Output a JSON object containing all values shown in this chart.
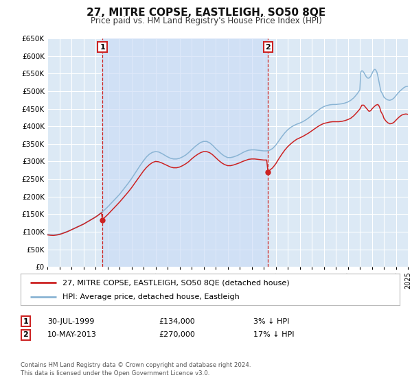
{
  "title": "27, MITRE COPSE, EASTLEIGH, SO50 8QE",
  "subtitle": "Price paid vs. HM Land Registry's House Price Index (HPI)",
  "title_fontsize": 11,
  "subtitle_fontsize": 8.5,
  "bg_color": "#ffffff",
  "plot_bg_color": "#dce9f5",
  "grid_color": "#ffffff",
  "hpi_color": "#8ab4d4",
  "price_color": "#cc2222",
  "marker_color": "#cc2222",
  "vline_color": "#cc2222",
  "ylim": [
    0,
    650000
  ],
  "xlim": [
    1995,
    2025
  ],
  "sale1_x": 1999.58,
  "sale1_y": 134000,
  "sale2_x": 2013.36,
  "sale2_y": 270000,
  "legend_entry1": "27, MITRE COPSE, EASTLEIGH, SO50 8QE (detached house)",
  "legend_entry2": "HPI: Average price, detached house, Eastleigh",
  "note1_label": "1",
  "note1_date": "30-JUL-1999",
  "note1_price": "£134,000",
  "note1_pct": "3% ↓ HPI",
  "note2_label": "2",
  "note2_date": "10-MAY-2013",
  "note2_price": "£270,000",
  "note2_pct": "17% ↓ HPI",
  "footer1": "Contains HM Land Registry data © Crown copyright and database right 2024.",
  "footer2": "This data is licensed under the Open Government Licence v3.0.",
  "hpi_data": [
    [
      1995.0,
      93000
    ],
    [
      1995.25,
      91500
    ],
    [
      1995.5,
      91000
    ],
    [
      1995.75,
      92000
    ],
    [
      1996.0,
      93500
    ],
    [
      1996.25,
      96000
    ],
    [
      1996.5,
      99000
    ],
    [
      1996.75,
      102000
    ],
    [
      1997.0,
      106000
    ],
    [
      1997.25,
      110000
    ],
    [
      1997.5,
      114000
    ],
    [
      1997.75,
      118000
    ],
    [
      1998.0,
      122000
    ],
    [
      1998.25,
      127000
    ],
    [
      1998.5,
      132000
    ],
    [
      1998.75,
      137000
    ],
    [
      1999.0,
      142000
    ],
    [
      1999.25,
      148000
    ],
    [
      1999.5,
      155000
    ],
    [
      1999.75,
      162000
    ],
    [
      2000.0,
      170000
    ],
    [
      2000.25,
      179000
    ],
    [
      2000.5,
      188000
    ],
    [
      2000.75,
      197000
    ],
    [
      2001.0,
      206000
    ],
    [
      2001.25,
      217000
    ],
    [
      2001.5,
      228000
    ],
    [
      2001.75,
      239000
    ],
    [
      2002.0,
      251000
    ],
    [
      2002.25,
      264000
    ],
    [
      2002.5,
      277000
    ],
    [
      2002.75,
      290000
    ],
    [
      2003.0,
      302000
    ],
    [
      2003.25,
      313000
    ],
    [
      2003.5,
      321000
    ],
    [
      2003.75,
      326000
    ],
    [
      2004.0,
      328000
    ],
    [
      2004.25,
      327000
    ],
    [
      2004.5,
      323000
    ],
    [
      2004.75,
      318000
    ],
    [
      2005.0,
      313000
    ],
    [
      2005.25,
      309000
    ],
    [
      2005.5,
      307000
    ],
    [
      2005.75,
      307000
    ],
    [
      2006.0,
      309000
    ],
    [
      2006.25,
      313000
    ],
    [
      2006.5,
      318000
    ],
    [
      2006.75,
      325000
    ],
    [
      2007.0,
      333000
    ],
    [
      2007.25,
      341000
    ],
    [
      2007.5,
      348000
    ],
    [
      2007.75,
      354000
    ],
    [
      2008.0,
      357000
    ],
    [
      2008.25,
      357000
    ],
    [
      2008.5,
      353000
    ],
    [
      2008.75,
      346000
    ],
    [
      2009.0,
      337000
    ],
    [
      2009.25,
      329000
    ],
    [
      2009.5,
      321000
    ],
    [
      2009.75,
      315000
    ],
    [
      2010.0,
      311000
    ],
    [
      2010.25,
      311000
    ],
    [
      2010.5,
      313000
    ],
    [
      2010.75,
      316000
    ],
    [
      2011.0,
      320000
    ],
    [
      2011.25,
      325000
    ],
    [
      2011.5,
      329000
    ],
    [
      2011.75,
      332000
    ],
    [
      2012.0,
      333000
    ],
    [
      2012.25,
      333000
    ],
    [
      2012.5,
      332000
    ],
    [
      2012.75,
      331000
    ],
    [
      2013.0,
      330000
    ],
    [
      2013.25,
      330000
    ],
    [
      2013.5,
      332000
    ],
    [
      2013.75,
      337000
    ],
    [
      2014.0,
      346000
    ],
    [
      2014.25,
      358000
    ],
    [
      2014.5,
      370000
    ],
    [
      2014.75,
      381000
    ],
    [
      2015.0,
      390000
    ],
    [
      2015.25,
      397000
    ],
    [
      2015.5,
      402000
    ],
    [
      2015.75,
      406000
    ],
    [
      2016.0,
      409000
    ],
    [
      2016.25,
      413000
    ],
    [
      2016.5,
      418000
    ],
    [
      2016.75,
      424000
    ],
    [
      2017.0,
      431000
    ],
    [
      2017.25,
      438000
    ],
    [
      2017.5,
      445000
    ],
    [
      2017.75,
      451000
    ],
    [
      2018.0,
      456000
    ],
    [
      2018.25,
      459000
    ],
    [
      2018.5,
      461000
    ],
    [
      2018.75,
      462000
    ],
    [
      2019.0,
      462000
    ],
    [
      2019.25,
      463000
    ],
    [
      2019.5,
      464000
    ],
    [
      2019.75,
      466000
    ],
    [
      2020.0,
      469000
    ],
    [
      2020.25,
      474000
    ],
    [
      2020.5,
      481000
    ],
    [
      2020.75,
      491000
    ],
    [
      2021.0,
      503000
    ],
    [
      2021.08,
      555000
    ],
    [
      2021.17,
      558000
    ],
    [
      2021.25,
      557000
    ],
    [
      2021.33,
      553000
    ],
    [
      2021.42,
      548000
    ],
    [
      2021.5,
      543000
    ],
    [
      2021.58,
      539000
    ],
    [
      2021.67,
      537000
    ],
    [
      2021.75,
      537000
    ],
    [
      2021.83,
      539000
    ],
    [
      2021.92,
      543000
    ],
    [
      2022.0,
      549000
    ],
    [
      2022.08,
      555000
    ],
    [
      2022.17,
      560000
    ],
    [
      2022.25,
      562000
    ],
    [
      2022.33,
      560000
    ],
    [
      2022.42,
      554000
    ],
    [
      2022.5,
      543000
    ],
    [
      2022.58,
      529000
    ],
    [
      2022.67,
      514000
    ],
    [
      2022.75,
      500000
    ],
    [
      2022.92,
      490000
    ],
    [
      2023.0,
      483000
    ],
    [
      2023.17,
      478000
    ],
    [
      2023.33,
      475000
    ],
    [
      2023.5,
      474000
    ],
    [
      2023.67,
      476000
    ],
    [
      2023.83,
      480000
    ],
    [
      2024.0,
      487000
    ],
    [
      2024.17,
      494000
    ],
    [
      2024.33,
      500000
    ],
    [
      2024.5,
      505000
    ],
    [
      2024.67,
      510000
    ],
    [
      2024.83,
      513000
    ],
    [
      2025.0,
      514000
    ]
  ],
  "price_data": [
    [
      1995.0,
      91000
    ],
    [
      1995.25,
      90000
    ],
    [
      1995.5,
      89500
    ],
    [
      1995.75,
      90500
    ],
    [
      1996.0,
      92000
    ],
    [
      1996.25,
      95000
    ],
    [
      1996.5,
      98000
    ],
    [
      1996.75,
      101500
    ],
    [
      1997.0,
      105500
    ],
    [
      1997.25,
      109500
    ],
    [
      1997.5,
      113500
    ],
    [
      1997.75,
      117500
    ],
    [
      1998.0,
      121500
    ],
    [
      1998.25,
      126500
    ],
    [
      1998.5,
      131500
    ],
    [
      1998.75,
      136500
    ],
    [
      1999.0,
      141500
    ],
    [
      1999.25,
      147500
    ],
    [
      1999.5,
      154000
    ],
    [
      1999.58,
      134000
    ],
    [
      1999.75,
      140000
    ],
    [
      2000.0,
      148000
    ],
    [
      2000.25,
      157000
    ],
    [
      2000.5,
      166000
    ],
    [
      2000.75,
      175000
    ],
    [
      2001.0,
      184000
    ],
    [
      2001.25,
      194000
    ],
    [
      2001.5,
      204000
    ],
    [
      2001.75,
      214000
    ],
    [
      2002.0,
      225000
    ],
    [
      2002.25,
      237000
    ],
    [
      2002.5,
      249000
    ],
    [
      2002.75,
      261000
    ],
    [
      2003.0,
      273000
    ],
    [
      2003.25,
      283000
    ],
    [
      2003.5,
      291000
    ],
    [
      2003.75,
      297000
    ],
    [
      2004.0,
      300000
    ],
    [
      2004.25,
      299000
    ],
    [
      2004.5,
      296000
    ],
    [
      2004.75,
      292000
    ],
    [
      2005.0,
      288000
    ],
    [
      2005.25,
      284000
    ],
    [
      2005.5,
      282000
    ],
    [
      2005.75,
      282000
    ],
    [
      2006.0,
      284000
    ],
    [
      2006.25,
      288000
    ],
    [
      2006.5,
      293000
    ],
    [
      2006.75,
      299000
    ],
    [
      2007.0,
      307000
    ],
    [
      2007.25,
      314000
    ],
    [
      2007.5,
      320000
    ],
    [
      2007.75,
      325000
    ],
    [
      2008.0,
      328000
    ],
    [
      2008.25,
      328000
    ],
    [
      2008.5,
      325000
    ],
    [
      2008.75,
      319000
    ],
    [
      2009.0,
      311000
    ],
    [
      2009.25,
      303000
    ],
    [
      2009.5,
      296000
    ],
    [
      2009.75,
      291000
    ],
    [
      2010.0,
      288000
    ],
    [
      2010.25,
      288000
    ],
    [
      2010.5,
      290000
    ],
    [
      2010.75,
      293000
    ],
    [
      2011.0,
      296000
    ],
    [
      2011.25,
      300000
    ],
    [
      2011.5,
      303000
    ],
    [
      2011.75,
      306000
    ],
    [
      2012.0,
      307000
    ],
    [
      2012.25,
      307000
    ],
    [
      2012.5,
      306000
    ],
    [
      2012.75,
      305000
    ],
    [
      2013.0,
      304000
    ],
    [
      2013.25,
      304000
    ],
    [
      2013.36,
      270000
    ],
    [
      2013.5,
      275000
    ],
    [
      2013.75,
      282000
    ],
    [
      2014.0,
      293000
    ],
    [
      2014.25,
      307000
    ],
    [
      2014.5,
      320000
    ],
    [
      2014.75,
      332000
    ],
    [
      2015.0,
      342000
    ],
    [
      2015.25,
      350000
    ],
    [
      2015.5,
      357000
    ],
    [
      2015.75,
      363000
    ],
    [
      2016.0,
      367000
    ],
    [
      2016.25,
      371000
    ],
    [
      2016.5,
      376000
    ],
    [
      2016.75,
      381000
    ],
    [
      2017.0,
      387000
    ],
    [
      2017.25,
      393000
    ],
    [
      2017.5,
      399000
    ],
    [
      2017.75,
      404000
    ],
    [
      2018.0,
      408000
    ],
    [
      2018.25,
      410000
    ],
    [
      2018.5,
      412000
    ],
    [
      2018.75,
      413000
    ],
    [
      2019.0,
      413000
    ],
    [
      2019.25,
      413000
    ],
    [
      2019.5,
      414000
    ],
    [
      2019.75,
      416000
    ],
    [
      2020.0,
      419000
    ],
    [
      2020.25,
      423000
    ],
    [
      2020.5,
      430000
    ],
    [
      2020.75,
      439000
    ],
    [
      2021.0,
      449000
    ],
    [
      2021.17,
      460000
    ],
    [
      2021.33,
      460000
    ],
    [
      2021.5,
      453000
    ],
    [
      2021.67,
      446000
    ],
    [
      2021.75,
      443000
    ],
    [
      2021.83,
      443000
    ],
    [
      2021.92,
      445000
    ],
    [
      2022.0,
      449000
    ],
    [
      2022.17,
      455000
    ],
    [
      2022.33,
      460000
    ],
    [
      2022.5,
      462000
    ],
    [
      2022.58,
      459000
    ],
    [
      2022.67,
      452000
    ],
    [
      2022.75,
      442000
    ],
    [
      2022.92,
      432000
    ],
    [
      2023.0,
      423000
    ],
    [
      2023.17,
      415000
    ],
    [
      2023.33,
      410000
    ],
    [
      2023.5,
      407000
    ],
    [
      2023.67,
      408000
    ],
    [
      2023.83,
      411000
    ],
    [
      2024.0,
      417000
    ],
    [
      2024.17,
      423000
    ],
    [
      2024.33,
      428000
    ],
    [
      2024.5,
      432000
    ],
    [
      2024.67,
      434000
    ],
    [
      2024.83,
      435000
    ],
    [
      2025.0,
      434000
    ]
  ]
}
